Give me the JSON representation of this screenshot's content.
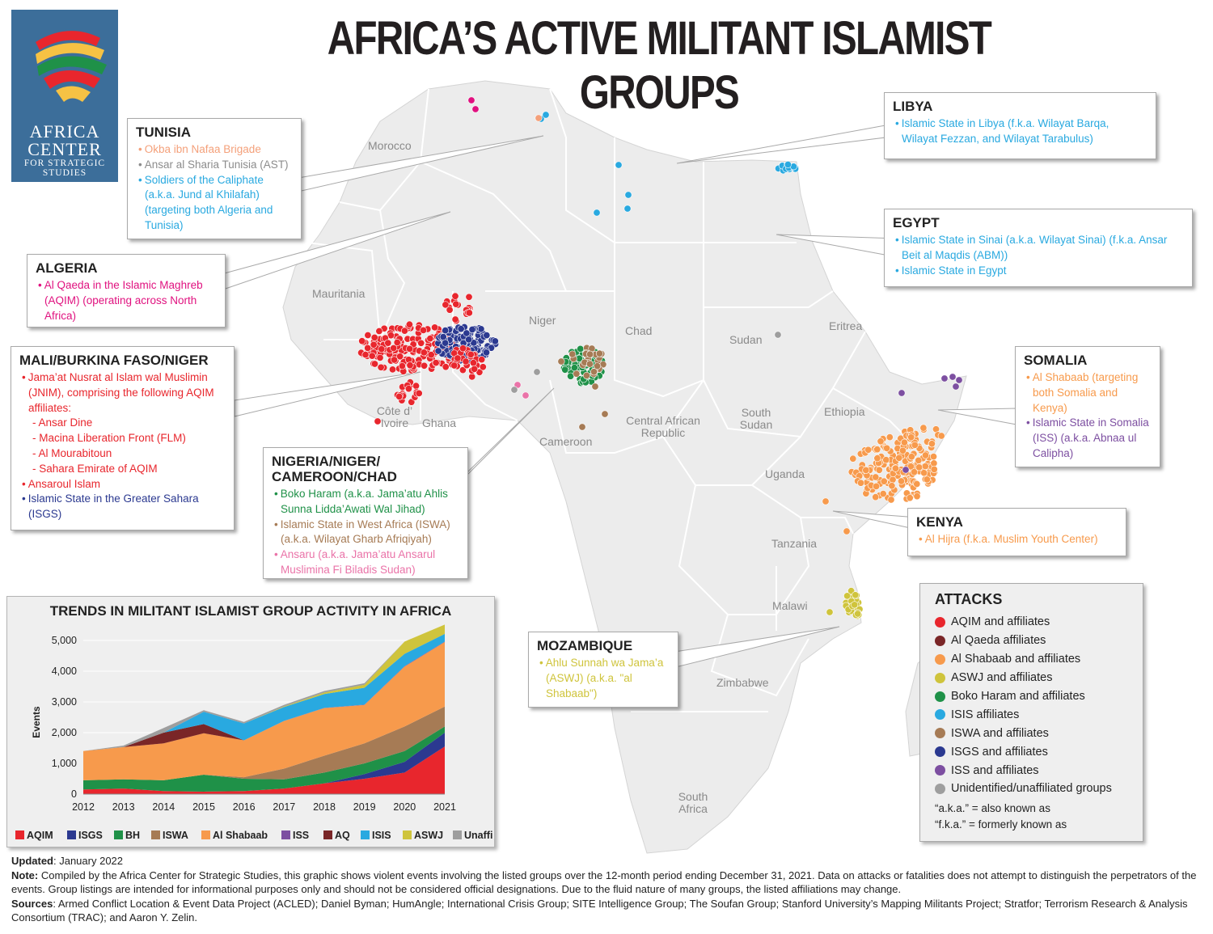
{
  "title": "AFRICA’S ACTIVE MILITANT ISLAMIST GROUPS",
  "logo": {
    "line1": "AFRICA",
    "line2": "CENTER",
    "line3": "FOR STRATEGIC",
    "line4": "STUDIES"
  },
  "colors": {
    "AQIM": "#e8262d",
    "AQ": "#7a2627",
    "ALSHABAAB": "#f79a4c",
    "ASWJ": "#cfc43c",
    "BH": "#1f9148",
    "ISIS": "#29a9e0",
    "ISWA": "#a67b55",
    "ISGS": "#2b3990",
    "ISS": "#7d4fa1",
    "UNAFF": "#9e9e9e",
    "ANSARU": "#ea73a8",
    "land": "#ececec",
    "border": "#ffffff"
  },
  "countries": {
    "morocco": "Morocco",
    "mauritania": "Mauritania",
    "niger": "Niger",
    "chad": "Chad",
    "sudan": "Sudan",
    "eritrea": "Eritrea",
    "ethiopia": "Ethiopia",
    "south_sudan": "South Sudan",
    "car": "Central African Republic",
    "cameroon": "Cameroon",
    "ghana": "Ghana",
    "cote": "Côte d’ Ivoire",
    "uganda": "Uganda",
    "tanzania": "Tanzania",
    "malawi": "Malawi",
    "zimbabwe": "Zimbabwe",
    "south_africa": "South Africa"
  },
  "boxes": {
    "tunisia": {
      "heading": "TUNISIA",
      "items": [
        {
          "text": "Okba ibn Nafaa Brigade",
          "color": "#f4a07a"
        },
        {
          "text": "Ansar al Sharia Tunisia (AST)",
          "color": "#8c8c8c"
        },
        {
          "text": "Soldiers of the Caliphate (a.k.a. Jund al Khilafah) (targeting both Algeria and Tunisia)",
          "color": "#29a9e0"
        }
      ]
    },
    "algeria": {
      "heading": "ALGERIA",
      "items": [
        {
          "text": "Al Qaeda in the Islamic Maghreb (AQIM) (operating across North Africa)",
          "color": "#e0117f"
        }
      ]
    },
    "mali": {
      "heading": "MALI/BURKINA FASO/NIGER",
      "items": [
        {
          "text": "Jama’at Nusrat al Islam wal Muslimin (JNIM), comprising the following AQIM affiliates:",
          "color": "#e8262d",
          "sub": false
        },
        {
          "text": "Ansar Dine",
          "color": "#e8262d",
          "sub": true
        },
        {
          "text": "Macina Liberation Front (FLM)",
          "color": "#e8262d",
          "sub": true
        },
        {
          "text": "Al Mourabitoun",
          "color": "#e8262d",
          "sub": true
        },
        {
          "text": "Sahara Emirate of AQIM",
          "color": "#e8262d",
          "sub": true
        },
        {
          "text": "Ansaroul Islam",
          "color": "#e8262d",
          "sub": false
        },
        {
          "text": "Islamic State in the Greater Sahara (ISGS)",
          "color": "#2b3990",
          "sub": false
        }
      ]
    },
    "nigeria": {
      "heading": "NIGERIA/NIGER/ CAMEROON/CHAD",
      "items": [
        {
          "text": "Boko Haram (a.k.a. Jama’atu Ahlis Sunna Lidda’Awati Wal Jihad)",
          "color": "#1f9148"
        },
        {
          "text": "Islamic State in West Africa (ISWA) (a.k.a. Wilayat Gharb Afriqiyah)",
          "color": "#a67b55"
        },
        {
          "text": "Ansaru (a.k.a. Jama’atu Ansarul Muslimina Fi Biladis Sudan)",
          "color": "#ea73a8"
        }
      ]
    },
    "libya": {
      "heading": "LIBYA",
      "items": [
        {
          "text": "Islamic State in Libya (f.k.a. Wilayat Barqa, Wilayat Fezzan, and Wilayat Tarabulus)",
          "color": "#29a9e0"
        }
      ]
    },
    "egypt": {
      "heading": "EGYPT",
      "items": [
        {
          "text": "Islamic State in Sinai (a.k.a. Wilayat Sinai) (f.k.a. Ansar Beit al Maqdis (ABM))",
          "color": "#29a9e0"
        },
        {
          "text": "Islamic State in Egypt",
          "color": "#29a9e0"
        }
      ]
    },
    "somalia": {
      "heading": "SOMALIA",
      "items": [
        {
          "text": "Al Shabaab (targeting both Somalia and Kenya)",
          "color": "#f79a4c"
        },
        {
          "text": "Islamic State in Somalia (ISS) (a.k.a. Abnaa ul Calipha)",
          "color": "#7d4fa1"
        }
      ]
    },
    "kenya": {
      "heading": "KENYA",
      "items": [
        {
          "text": "Al Hijra (f.k.a. Muslim Youth Center)",
          "color": "#f79a4c"
        }
      ]
    },
    "mozambique": {
      "heading": "MOZAMBIQUE",
      "items": [
        {
          "text": "Ahlu Sunnah wa Jama’a (ASWJ) (a.k.a. \"al Shabaab\")",
          "color": "#cfc43c"
        }
      ]
    }
  },
  "legend": {
    "title": "ATTACKS",
    "items": [
      {
        "label": "AQIM and affiliates",
        "color": "#e8262d"
      },
      {
        "label": "Al Qaeda affiliates",
        "color": "#7a2627"
      },
      {
        "label": "Al Shabaab and affiliates",
        "color": "#f79a4c"
      },
      {
        "label": "ASWJ and affiliates",
        "color": "#cfc43c"
      },
      {
        "label": "Boko Haram and affiliates",
        "color": "#1f9148"
      },
      {
        "label": "ISIS affiliates",
        "color": "#29a9e0"
      },
      {
        "label": "ISWA and affiliates",
        "color": "#a67b55"
      },
      {
        "label": "ISGS and affiliates",
        "color": "#2b3990"
      },
      {
        "label": "ISS and affiliates",
        "color": "#7d4fa1"
      },
      {
        "label": "Unidentified/unaffiliated groups",
        "color": "#9e9e9e"
      }
    ],
    "note1": "“a.k.a.” = also known as",
    "note2": "“f.k.a.” = formerly known as"
  },
  "chart_data": {
    "type": "area",
    "title": "TRENDS IN MILITANT ISLAMIST GROUP ACTIVITY IN AFRICA",
    "xlabel": "",
    "ylabel": "Events",
    "ylim": [
      0,
      5500
    ],
    "yticks": [
      "0",
      "1,000",
      "2,000",
      "3,000",
      "4,000",
      "5,000"
    ],
    "x": [
      "2012",
      "2013",
      "2014",
      "2015",
      "2016",
      "2017",
      "2018",
      "2019",
      "2020",
      "2021"
    ],
    "series": [
      {
        "name": "AQIM",
        "color": "#e8262d",
        "values": [
          150,
          180,
          100,
          80,
          100,
          180,
          350,
          500,
          700,
          1550
        ]
      },
      {
        "name": "ISGS",
        "color": "#2b3990",
        "values": [
          0,
          0,
          0,
          0,
          0,
          0,
          0,
          150,
          350,
          450
        ]
      },
      {
        "name": "BH",
        "color": "#1f9148",
        "values": [
          300,
          300,
          350,
          550,
          400,
          300,
          350,
          350,
          350,
          200
        ]
      },
      {
        "name": "ISWA",
        "color": "#a67b55",
        "values": [
          0,
          0,
          0,
          0,
          50,
          350,
          550,
          650,
          800,
          650
        ]
      },
      {
        "name": "Al Shabaab",
        "color": "#f79a4c",
        "values": [
          950,
          1050,
          1200,
          1350,
          1200,
          1550,
          1550,
          1250,
          1950,
          2100
        ]
      },
      {
        "name": "ISS",
        "color": "#7d4fa1",
        "values": [
          0,
          0,
          0,
          0,
          0,
          5,
          5,
          10,
          15,
          15
        ]
      },
      {
        "name": "AQ",
        "color": "#7a2627",
        "values": [
          0,
          0,
          350,
          300,
          0,
          0,
          0,
          0,
          0,
          0
        ]
      },
      {
        "name": "ISIS",
        "color": "#29a9e0",
        "values": [
          0,
          0,
          0,
          400,
          550,
          450,
          450,
          550,
          400,
          250
        ]
      },
      {
        "name": "ASWJ",
        "color": "#cfc43c",
        "values": [
          0,
          0,
          0,
          0,
          0,
          20,
          50,
          100,
          400,
          300
        ]
      },
      {
        "name": "Unaffiliated",
        "color": "#9e9e9e",
        "values": [
          0,
          50,
          150,
          50,
          50,
          50,
          50,
          50,
          0,
          0
        ]
      }
    ],
    "legend_order": [
      "AQIM",
      "ISGS",
      "BH",
      "ISWA",
      "Al Shabaab",
      "ISS",
      "AQ",
      "ISIS",
      "ASWJ",
      "Unaffiliated"
    ]
  },
  "footer": {
    "updated_label": "Updated",
    "updated_value": ": January 2022",
    "note_label": "Note:",
    "note_value": " Compiled by the Africa Center for Strategic Studies, this graphic shows violent events involving the listed groups over the 12-month period ending December 31, 2021. Data on attacks or fatalities does not attempt to distinguish the perpetrators of the events. Group listings are intended for informational purposes only and should not be considered official designations. Due to the fluid nature of many groups, the listed affiliations may change.",
    "sources_label": "Sources",
    "sources_value": ": Armed Conflict Location & Event Data Project (ACLED); Daniel Byman; HumAngle; International Crisis Group; SITE Intelligence Group; The Soufan Group; Stanford University’s Mapping Militants Project; Stratfor; Terrorism Research & Analysis Consortium (TRAC); and Aaron Y. Zelin."
  }
}
